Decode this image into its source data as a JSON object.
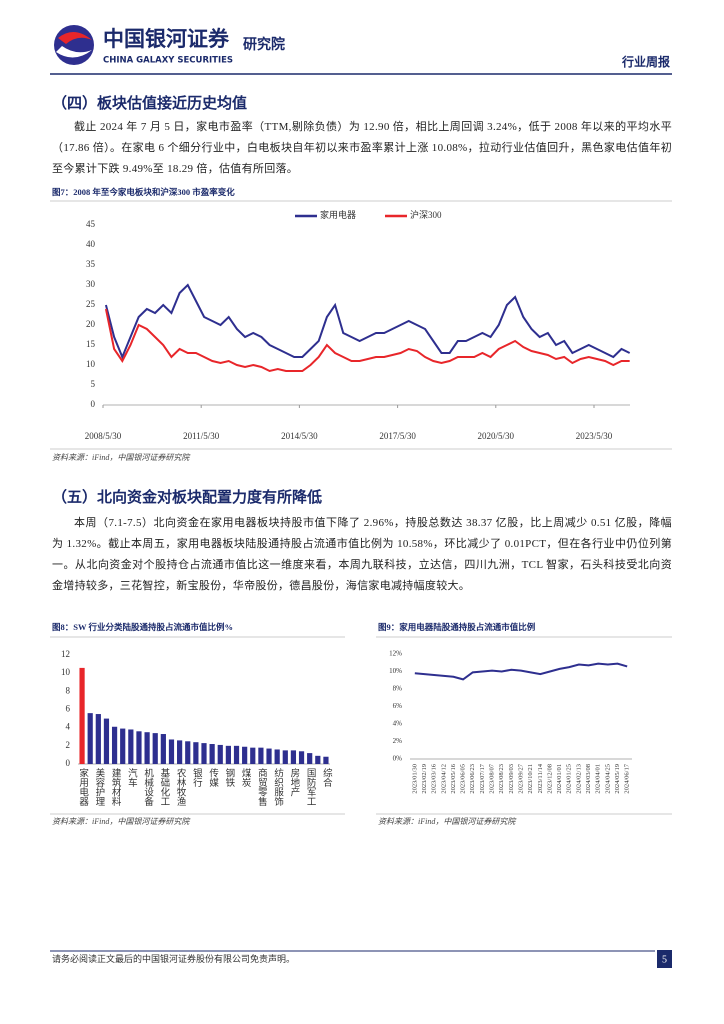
{
  "header": {
    "logo_cn": "中国银河证券",
    "logo_en": "CHINA GALAXY SECURITIES",
    "institute": "研究院",
    "report_type": "行业周报"
  },
  "sections": [
    {
      "heading": "（四）板块估值接近历史均值",
      "paragraph": "截止 2024 年 7 月 5 日，家电市盈率（TTM,剔除负债）为 12.90 倍，相比上周回调 3.24%，低于 2008 年以来的平均水平（17.86 倍）。在家电 6 个细分行业中，白电板块自年初以来市盈率累计上涨 10.08%，拉动行业估值回升，黑色家电估值年初至今累计下跌 9.49%至 18.29 倍，估值有所回落。"
    },
    {
      "heading": "（五）北向资金对板块配置力度有所降低",
      "paragraph": "本周（7.1-7.5）北向资金在家用电器板块持股市值下降了 2.96%，持股总数达 38.37 亿股，比上周减少 0.51 亿股，降幅为 1.32%。截止本周五，家用电器板块陆股通持股占流通市值比例为 10.58%，环比减少了 0.01PCT，但在各行业中仍位列第一。从北向资金对个股持仓占流通市值比这一维度来看，本周九联科技，立达信，四川九洲，TCL 智家，石头科技受北向资金增持较多，三花智控，新宝股份，华帝股份，德昌股份，海信家电减持幅度较大。"
    }
  ],
  "chart_data": [
    {
      "type": "line",
      "title": "图7：2008 年至今家电板块和沪深300 市盈率变化",
      "source": "资料来源：iFind，中国银河证券研究院",
      "x": [
        2008.5,
        2008.75,
        2009,
        2009.25,
        2009.5,
        2009.75,
        2010,
        2010.25,
        2010.5,
        2010.75,
        2011,
        2011.25,
        2011.5,
        2011.75,
        2012,
        2012.25,
        2012.5,
        2012.75,
        2013,
        2013.25,
        2013.5,
        2013.75,
        2014,
        2014.25,
        2014.5,
        2014.75,
        2015,
        2015.25,
        2015.5,
        2015.75,
        2016,
        2016.25,
        2016.5,
        2016.75,
        2017,
        2017.25,
        2017.5,
        2017.75,
        2018,
        2018.25,
        2018.5,
        2018.75,
        2019,
        2019.25,
        2019.5,
        2019.75,
        2020,
        2020.25,
        2020.5,
        2020.75,
        2021,
        2021.25,
        2021.5,
        2021.75,
        2022,
        2022.25,
        2022.5,
        2022.75,
        2023,
        2023.25,
        2023.5,
        2023.75,
        2024,
        2024.25,
        2024.5
      ],
      "series": [
        {
          "name": "家用电器",
          "color": "#2e2f8f",
          "values": [
            25,
            17,
            12,
            17,
            22,
            24,
            23,
            25,
            23,
            28,
            30,
            26,
            22,
            21,
            20,
            22,
            19,
            17,
            18,
            17,
            15,
            14,
            13,
            12,
            12,
            14,
            16,
            22,
            25,
            18,
            17,
            16,
            17,
            18,
            18,
            19,
            20,
            21,
            20,
            19,
            16,
            13,
            13,
            16,
            16,
            17,
            18,
            17,
            20,
            25,
            27,
            22,
            19,
            17,
            18,
            15,
            16,
            13,
            14,
            15,
            14,
            13,
            12,
            14,
            13
          ]
        },
        {
          "name": "沪深300",
          "color": "#e8262a",
          "values": [
            24,
            14,
            11,
            15,
            20,
            19,
            17,
            15,
            12,
            14,
            13,
            13,
            12,
            11,
            10.5,
            11,
            10,
            9.5,
            10,
            9.5,
            8.5,
            9,
            8.5,
            8.5,
            8.5,
            10,
            12,
            15,
            13,
            12,
            11,
            11,
            11.5,
            12,
            12,
            12.5,
            13,
            14,
            13.5,
            12,
            11,
            10.5,
            11,
            12,
            12,
            12,
            13,
            12,
            14,
            15,
            16,
            14.5,
            13.5,
            13,
            12.5,
            11.5,
            12,
            10.5,
            11.5,
            12,
            11.5,
            11,
            10,
            11,
            11
          ]
        }
      ],
      "xlim": [
        2008.41,
        2024.51
      ],
      "xticks": [
        {
          "value": 2008.41,
          "label": "2008/5/30"
        },
        {
          "value": 2011.41,
          "label": "2011/5/30"
        },
        {
          "value": 2014.41,
          "label": "2014/5/30"
        },
        {
          "value": 2017.41,
          "label": "2017/5/30"
        },
        {
          "value": 2020.41,
          "label": "2020/5/30"
        },
        {
          "value": 2023.41,
          "label": "2023/5/30"
        }
      ],
      "ylim": [
        0,
        45
      ],
      "yticks": [
        0,
        5,
        10,
        15,
        20,
        25,
        30,
        35,
        40,
        45
      ],
      "legend": "top"
    },
    {
      "type": "bar",
      "title": "图8：SW 行业分类陆股通持股占流通市值比例%",
      "source": "资料来源：iFind，中国银河证券研究院",
      "categories": [
        "家用电器",
        null,
        "美容护理",
        null,
        "建筑材料",
        null,
        "汽车",
        null,
        "机械设备",
        null,
        "基础化工",
        null,
        "农林牧渔",
        null,
        "银行",
        null,
        "传媒",
        null,
        "钢铁",
        null,
        "煤炭",
        null,
        "商贸零售",
        null,
        "纺织服饰",
        null,
        "房地产",
        null,
        "国防军工",
        null,
        "综合"
      ],
      "values": [
        10.58,
        5.6,
        5.5,
        5.0,
        4.1,
        3.9,
        3.8,
        3.6,
        3.5,
        3.4,
        3.3,
        2.7,
        2.6,
        2.5,
        2.4,
        2.3,
        2.2,
        2.1,
        2.0,
        2.0,
        1.9,
        1.8,
        1.8,
        1.7,
        1.6,
        1.5,
        1.5,
        1.4,
        1.2,
        0.9,
        0.8
      ],
      "colors": [
        "#e8262a",
        "#2e2f8f",
        "#2e2f8f",
        "#2e2f8f",
        "#2e2f8f",
        "#2e2f8f",
        "#2e2f8f",
        "#2e2f8f",
        "#2e2f8f",
        "#2e2f8f",
        "#2e2f8f",
        "#2e2f8f",
        "#2e2f8f",
        "#2e2f8f",
        "#2e2f8f",
        "#2e2f8f",
        "#2e2f8f",
        "#2e2f8f",
        "#2e2f8f",
        "#2e2f8f",
        "#2e2f8f",
        "#2e2f8f",
        "#2e2f8f",
        "#2e2f8f",
        "#2e2f8f",
        "#2e2f8f",
        "#2e2f8f",
        "#2e2f8f",
        "#2e2f8f",
        "#2e2f8f",
        "#2e2f8f"
      ],
      "ylim": [
        0,
        12
      ],
      "yticks": [
        0,
        2,
        4,
        6,
        8,
        10,
        12
      ]
    },
    {
      "type": "line",
      "title": "图9：家用电器陆股通持股占流通市值比例",
      "source": "资料来源：iFind，中国银河证券研究院",
      "categories": [
        "2023/01/30",
        "2023/02/19",
        "2023/03/16",
        "2023/04/12",
        "2023/05/16",
        "2023/06/05",
        "2023/06/23",
        "2023/07/17",
        "2023/08/07",
        "2023/08/23",
        "2023/09/03",
        "2023/09/27",
        "2023/10/21",
        "2023/11/14",
        "2023/12/08",
        "2024/01/01",
        "2024/01/25",
        "2024/02/13",
        "2024/03/08",
        "2024/04/01",
        "2024/04/25",
        "2024/05/19",
        "2024/06/17"
      ],
      "series": [
        {
          "color": "#2e2f8f",
          "values": [
            9.8,
            9.7,
            9.6,
            9.5,
            9.4,
            9.1,
            9.9,
            10.0,
            10.1,
            10.0,
            10.2,
            10.1,
            9.9,
            9.7,
            10.0,
            10.3,
            10.5,
            10.8,
            10.7,
            10.9,
            10.8,
            10.9,
            10.58
          ]
        }
      ],
      "ylim": [
        0,
        12
      ],
      "yticks": [
        {
          "value": 0,
          "label": "0%"
        },
        {
          "value": 2,
          "label": "2%"
        },
        {
          "value": 4,
          "label": "4%"
        },
        {
          "value": 6,
          "label": "6%"
        },
        {
          "value": 8,
          "label": "8%"
        },
        {
          "value": 10,
          "label": "10%"
        },
        {
          "value": 12,
          "label": "12%"
        }
      ]
    }
  ],
  "footer": {
    "disclaimer": "请务必阅读正文最后的中国银河证券股份有限公司免责声明。",
    "page": "5"
  }
}
